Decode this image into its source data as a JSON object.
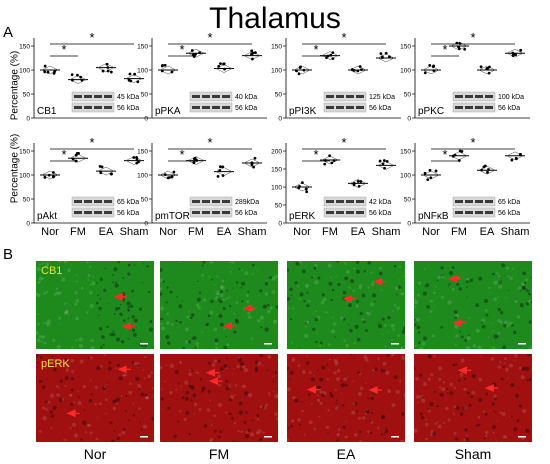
{
  "figure_title": "Thalamus",
  "panel_a_label": "A",
  "panel_b_label": "B",
  "y_axis_label": "Percentage (%)",
  "y_ticks": [
    "0",
    "50",
    "100",
    "150"
  ],
  "groups": [
    "Nor",
    "FM",
    "EA",
    "Sham"
  ],
  "significance_marker": "*",
  "loading_control_kda": "56 kDa",
  "chart_data": [
    {
      "type": "scatter",
      "title": "CB1",
      "marker_kda": "45 kDa",
      "categories": [
        "Nor",
        "FM",
        "EA",
        "Sham"
      ],
      "values": [
        100,
        80,
        105,
        82
      ],
      "ylim": [
        0,
        150
      ]
    },
    {
      "type": "scatter",
      "title": "pPKA",
      "marker_kda": "40 kDa",
      "categories": [
        "Nor",
        "FM",
        "EA",
        "Sham"
      ],
      "values": [
        100,
        135,
        103,
        130
      ],
      "ylim": [
        0,
        150
      ]
    },
    {
      "type": "scatter",
      "title": "pPI3K",
      "marker_kda": "125 kDa",
      "categories": [
        "Nor",
        "FM",
        "EA",
        "Sham"
      ],
      "values": [
        100,
        130,
        100,
        125
      ],
      "ylim": [
        0,
        150
      ]
    },
    {
      "type": "scatter",
      "title": "pPKC",
      "marker_kda": "100 kDa",
      "categories": [
        "Nor",
        "FM",
        "EA",
        "Sham"
      ],
      "values": [
        100,
        150,
        100,
        135
      ],
      "ylim": [
        0,
        150
      ]
    },
    {
      "type": "scatter",
      "title": "pAkt",
      "marker_kda": "65 kDa",
      "categories": [
        "Nor",
        "FM",
        "EA",
        "Sham"
      ],
      "values": [
        100,
        135,
        108,
        130
      ],
      "ylim": [
        0,
        150
      ]
    },
    {
      "type": "scatter",
      "title": "pmTOR",
      "marker_kda": "289kDa",
      "categories": [
        "Nor",
        "FM",
        "EA",
        "Sham"
      ],
      "values": [
        100,
        130,
        107,
        125
      ],
      "ylim": [
        0,
        150
      ]
    },
    {
      "type": "scatter",
      "title": "pERK",
      "marker_kda": "42 kDa",
      "categories": [
        "Nor",
        "FM",
        "EA",
        "Sham"
      ],
      "values": [
        100,
        175,
        110,
        160
      ],
      "ylim": [
        0,
        200
      ]
    },
    {
      "type": "scatter",
      "title": "pNFκB",
      "marker_kda": "65 kDa",
      "categories": [
        "Nor",
        "FM",
        "EA",
        "Sham"
      ],
      "values": [
        100,
        140,
        110,
        140
      ],
      "ylim": [
        0,
        150
      ]
    }
  ],
  "micrographs": {
    "rows": [
      {
        "stain": "CB1",
        "color": "#1e8a1e"
      },
      {
        "stain": "pERK",
        "color": "#a01010"
      }
    ],
    "columns": [
      "Nor",
      "FM",
      "EA",
      "Sham"
    ],
    "arrow_color": "#ff2a2a"
  }
}
